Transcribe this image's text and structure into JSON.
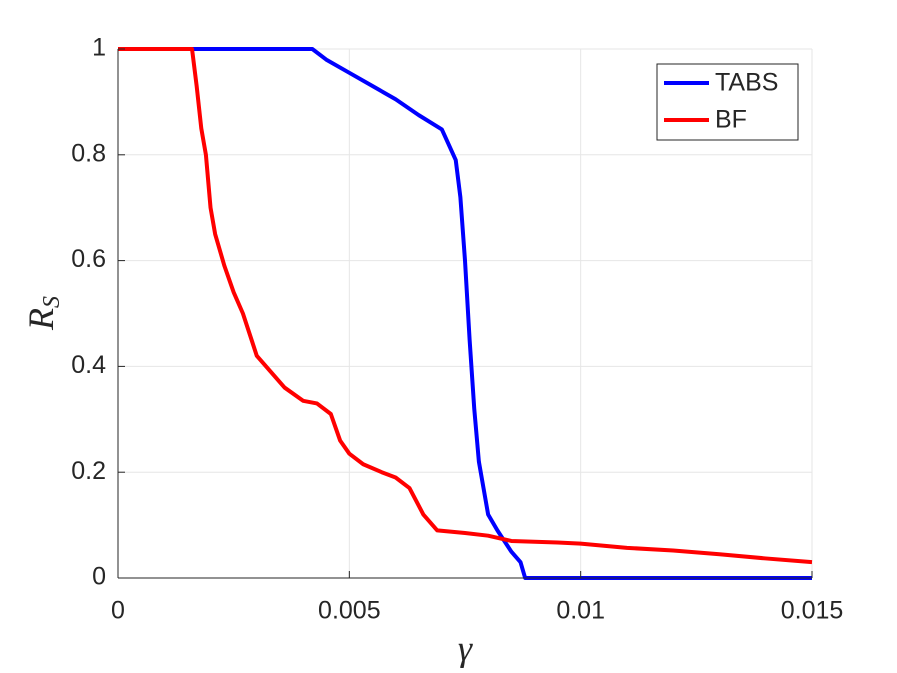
{
  "chart_data": {
    "type": "line",
    "xlabel": "γ",
    "ylabel": {
      "base": "R",
      "sub": "S"
    },
    "xlim": [
      0,
      0.015
    ],
    "xticks": [
      0,
      0.005,
      0.01,
      0.015
    ],
    "ylim": [
      0,
      1
    ],
    "yticks": [
      0,
      0.2,
      0.4,
      0.6,
      0.8,
      1
    ],
    "grid": true,
    "legend": "top-right",
    "series": [
      {
        "name": "TABS",
        "color": "#0000ff",
        "x": [
          0,
          0.0042,
          0.0045,
          0.005,
          0.0055,
          0.006,
          0.0065,
          0.007,
          0.0073,
          0.0074,
          0.0075,
          0.0076,
          0.0077,
          0.0078,
          0.0079,
          0.008,
          0.0082,
          0.0085,
          0.0087,
          0.0088,
          0.015
        ],
        "values": [
          1,
          1,
          0.98,
          0.955,
          0.93,
          0.905,
          0.875,
          0.848,
          0.79,
          0.72,
          0.6,
          0.45,
          0.32,
          0.22,
          0.17,
          0.12,
          0.09,
          0.05,
          0.03,
          0,
          0
        ]
      },
      {
        "name": "BF",
        "color": "#ff0000",
        "x": [
          0,
          0.0016,
          0.0017,
          0.0018,
          0.0019,
          0.002,
          0.0021,
          0.0023,
          0.0025,
          0.0027,
          0.003,
          0.0033,
          0.0036,
          0.004,
          0.0043,
          0.0046,
          0.0048,
          0.005,
          0.0053,
          0.0057,
          0.006,
          0.0063,
          0.0066,
          0.0069,
          0.0075,
          0.008,
          0.0085,
          0.0095,
          0.01,
          0.011,
          0.012,
          0.013,
          0.014,
          0.015
        ],
        "values": [
          1,
          1,
          0.93,
          0.85,
          0.8,
          0.7,
          0.65,
          0.59,
          0.54,
          0.5,
          0.42,
          0.39,
          0.36,
          0.335,
          0.33,
          0.31,
          0.26,
          0.235,
          0.215,
          0.2,
          0.19,
          0.17,
          0.12,
          0.09,
          0.085,
          0.08,
          0.07,
          0.067,
          0.065,
          0.057,
          0.052,
          0.045,
          0.037,
          0.03
        ]
      }
    ]
  }
}
